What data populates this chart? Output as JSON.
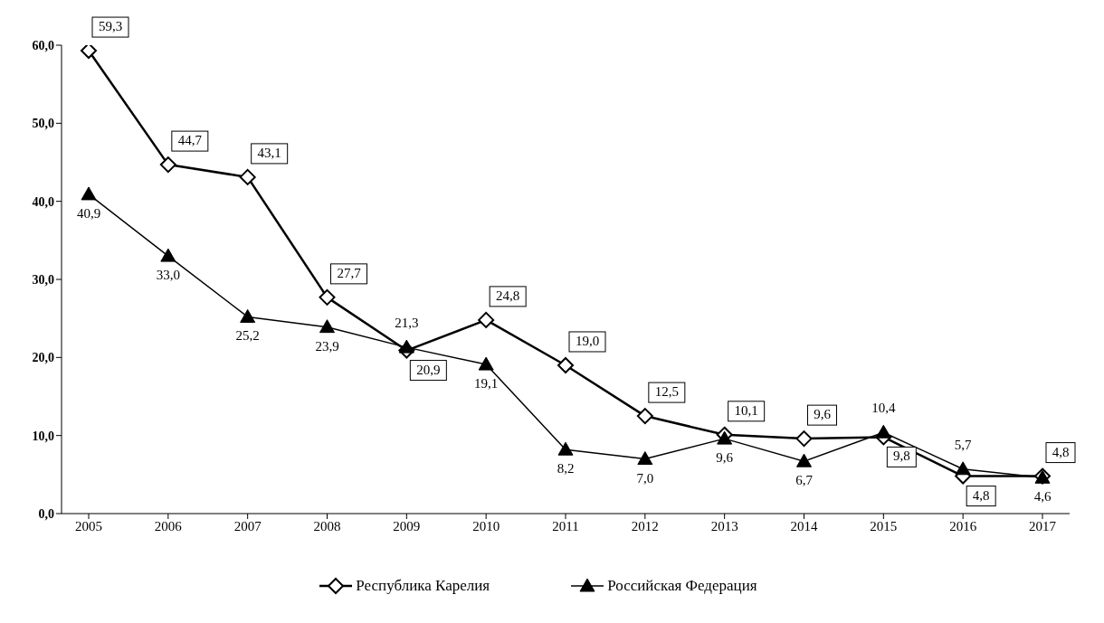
{
  "chart_data": {
    "type": "line",
    "categories": [
      "2005",
      "2006",
      "2007",
      "2008",
      "2009",
      "2010",
      "2011",
      "2012",
      "2013",
      "2014",
      "2015",
      "2016",
      "2017"
    ],
    "series": [
      {
        "name": "Республика Карелия",
        "color": "#000000",
        "marker": "diamond",
        "values": [
          59.3,
          44.7,
          43.1,
          27.7,
          20.9,
          24.8,
          19.0,
          12.5,
          10.1,
          9.6,
          9.8,
          4.8,
          4.8
        ],
        "value_labels": [
          "59,3",
          "44,7",
          "43,1",
          "27,7",
          "20,9",
          "24,8",
          "19,0",
          "12,5",
          "10,1",
          "9,6",
          "9,8",
          "4,8",
          "4,8"
        ]
      },
      {
        "name": "Российская Федерация",
        "color": "#000000",
        "marker": "triangle",
        "values": [
          40.9,
          33.0,
          25.2,
          23.9,
          21.3,
          19.1,
          8.2,
          7.0,
          9.6,
          6.7,
          10.4,
          5.7,
          4.6
        ],
        "value_labels": [
          "40,9",
          "33,0",
          "25,2",
          "23,9",
          "21,3",
          "19,1",
          "8,2",
          "7,0",
          "9,6",
          "6,7",
          "10,4",
          "5,7",
          "4,6"
        ]
      }
    ],
    "ylim": [
      0,
      60
    ],
    "yticks": [
      {
        "value": 0,
        "label": "0,0"
      },
      {
        "value": 10,
        "label": "10,0"
      },
      {
        "value": 20,
        "label": "20,0"
      },
      {
        "value": 30,
        "label": "30,0"
      },
      {
        "value": 40,
        "label": "40,0"
      },
      {
        "value": 50,
        "label": "50,0"
      },
      {
        "value": 60,
        "label": "60,0"
      }
    ],
    "grid": false,
    "legend": "bottom",
    "line_style": "solid"
  }
}
